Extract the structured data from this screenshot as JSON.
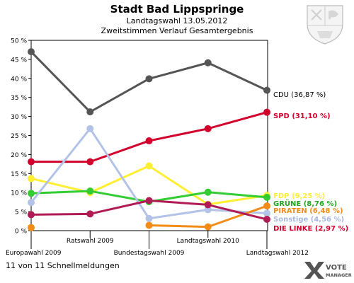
{
  "header": {
    "title": "Stadt Bad Lippspringe",
    "subtitle1": "Landtagswahl 13.05.2012",
    "subtitle2": "Zweitstimmen Verlauf Gesamtergebnis"
  },
  "footer": {
    "status": "11 von 11 Schnellmeldungen"
  },
  "logo": {
    "line1": "VOTE",
    "line2": "MANAGER"
  },
  "chart_data": {
    "type": "line",
    "categories": [
      "Europawahl 2009",
      "Ratswahl 2009",
      "Bundestagswahl 2009",
      "Landtagswahl 2010",
      "Landtagswahl 2012"
    ],
    "ylim": [
      0,
      50
    ],
    "yticks": [
      "0 %",
      "5 %",
      "10 %",
      "15 %",
      "20 %",
      "25 %",
      "30 %",
      "35 %",
      "40 %",
      "45 %",
      "50 %"
    ],
    "grid": false,
    "legend_placement": "right",
    "series": [
      {
        "name": "CDU (36,87 %)",
        "color": "#555555",
        "label_color": "#000000",
        "values": [
          47.0,
          31.2,
          39.9,
          44.1,
          36.87
        ]
      },
      {
        "name": "SPD (31,10 %)",
        "color": "#d2002d",
        "label_color": "#d2002d",
        "values": [
          18.1,
          18.1,
          23.6,
          26.8,
          31.1
        ]
      },
      {
        "name": "FDP (9,25 %)",
        "color": "#ffef33",
        "label_color": "#ffef33",
        "values": [
          13.7,
          10.0,
          17.0,
          6.9,
          9.25
        ]
      },
      {
        "name": "GRÜNE (8,76 %)",
        "color": "#33cc33",
        "label_color": "#23a623",
        "values": [
          9.8,
          10.4,
          7.6,
          10.1,
          8.76
        ]
      },
      {
        "name": "Sonstige (4,56 %)",
        "color": "#b3c3e8",
        "label_color": "#a8b8e0",
        "values": [
          7.4,
          26.8,
          3.2,
          5.5,
          4.56
        ]
      },
      {
        "name": "PIRATEN (6,48 %)",
        "color": "#f28c16",
        "label_color": "#f28c16",
        "values": [
          0.8,
          null,
          1.4,
          1.0,
          6.48
        ]
      },
      {
        "name": "DIE LINKE (2,97 %)",
        "color": "#b01a55",
        "label_color": "#d2002d",
        "values": [
          4.2,
          4.4,
          7.9,
          6.8,
          2.97
        ]
      }
    ]
  }
}
